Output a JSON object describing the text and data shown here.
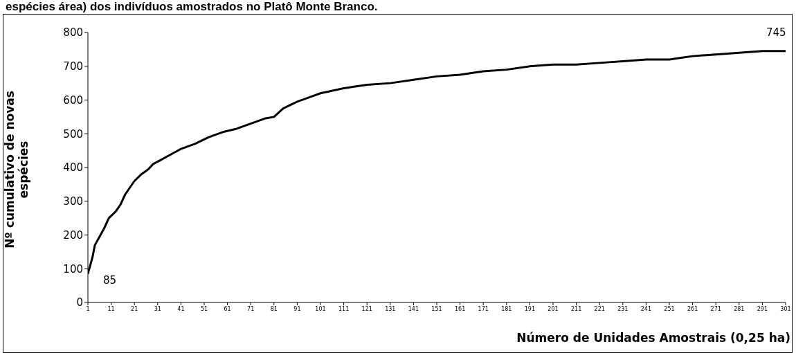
{
  "chart_data": {
    "type": "line",
    "title": "espécies área) dos indivíduos amostrados no Platô Monte Branco.",
    "xlabel": "Número de Unidades Amostrais (0,25 ha)",
    "ylabel": "Nº cumulativo de novas espécies",
    "x": [
      1,
      2,
      3,
      4,
      6,
      8,
      10,
      13,
      15,
      17,
      19,
      21,
      24,
      27,
      29,
      33,
      37,
      41,
      47,
      53,
      59,
      65,
      71,
      77,
      81,
      85,
      91,
      97,
      101,
      111,
      121,
      131,
      141,
      151,
      161,
      171,
      181,
      191,
      201,
      211,
      221,
      231,
      241,
      251,
      256,
      261,
      271,
      281,
      291,
      301
    ],
    "series": [
      {
        "color": "#000000",
        "values": [
          85,
          110,
          135,
          170,
          195,
          220,
          250,
          270,
          290,
          320,
          340,
          360,
          380,
          395,
          410,
          425,
          440,
          455,
          470,
          490,
          505,
          515,
          530,
          545,
          550,
          575,
          595,
          610,
          620,
          635,
          645,
          650,
          660,
          670,
          675,
          685,
          690,
          700,
          705,
          705,
          710,
          715,
          720,
          720,
          725,
          730,
          735,
          740,
          745,
          745
        ]
      }
    ],
    "xlim": [
      1,
      301
    ],
    "xticks": [
      1,
      11,
      21,
      31,
      41,
      51,
      61,
      71,
      81,
      91,
      101,
      111,
      121,
      131,
      141,
      151,
      161,
      171,
      181,
      191,
      201,
      211,
      221,
      231,
      241,
      251,
      261,
      271,
      281,
      291,
      301
    ],
    "ylim": [
      0,
      800
    ],
    "yticks": [
      0,
      100,
      200,
      300,
      400,
      500,
      600,
      700,
      800
    ],
    "annotations": [
      {
        "text": "85",
        "x": 1,
        "y": 85
      },
      {
        "text": "745",
        "x": 301,
        "y": 745
      }
    ],
    "grid": false,
    "legend": false,
    "marker": "none",
    "line_style": "solid"
  }
}
